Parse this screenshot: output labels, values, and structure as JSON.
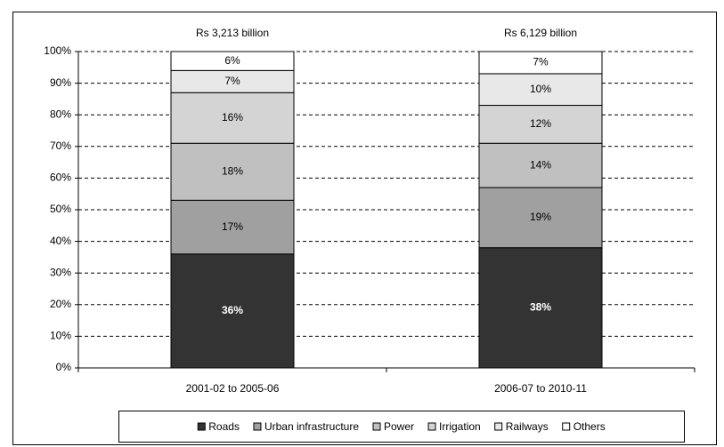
{
  "chart_data": {
    "type": "stacked_bar_100",
    "categories": [
      "2001-02 to 2005-06",
      "2006-07 to 2010-11"
    ],
    "annotations": [
      "Rs 3,213 billion",
      "Rs 6,129 billion"
    ],
    "series": [
      {
        "name": "Roads",
        "color": "#333333",
        "values": [
          36,
          38
        ],
        "value_labels": [
          "36%",
          "38%"
        ]
      },
      {
        "name": "Urban infrastructure",
        "color": "#a0a0a0",
        "values": [
          17,
          19
        ],
        "value_labels": [
          "17%",
          "19%"
        ]
      },
      {
        "name": "Power",
        "color": "#c0c0c0",
        "values": [
          18,
          14
        ],
        "value_labels": [
          "18%",
          "14%"
        ]
      },
      {
        "name": "Irrigation",
        "color": "#d4d4d4",
        "values": [
          16,
          12
        ],
        "value_labels": [
          "16%",
          "12%"
        ]
      },
      {
        "name": "Railways",
        "color": "#e8e8e8",
        "values": [
          7,
          10
        ],
        "value_labels": [
          "7%",
          "10%"
        ]
      },
      {
        "name": "Others",
        "color": "#ffffff",
        "values": [
          6,
          7
        ],
        "value_labels": [
          "6%",
          "7%"
        ]
      }
    ],
    "ylim": [
      0,
      100
    ],
    "yticks": [
      {
        "value": 0,
        "label": "0%"
      },
      {
        "value": 10,
        "label": "10%"
      },
      {
        "value": 20,
        "label": "20%"
      },
      {
        "value": 30,
        "label": "30%"
      },
      {
        "value": 40,
        "label": "40%"
      },
      {
        "value": 50,
        "label": "50%"
      },
      {
        "value": 60,
        "label": "60%"
      },
      {
        "value": 70,
        "label": "70%"
      },
      {
        "value": 80,
        "label": "80%"
      },
      {
        "value": 90,
        "label": "90%"
      },
      {
        "value": 100,
        "label": "100%"
      }
    ],
    "grid": true,
    "legend": "bottom"
  }
}
